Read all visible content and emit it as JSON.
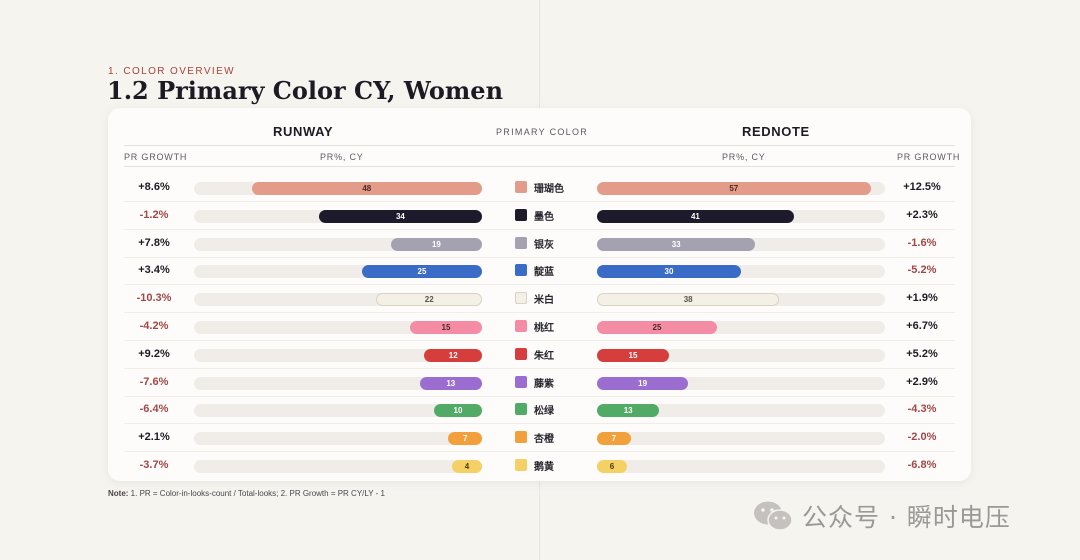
{
  "section_label": "1. COLOR OVERVIEW",
  "title": "1.2 Primary Color CY, Women",
  "headers": {
    "runway": "RUNWAY",
    "center": "PRIMARY COLOR",
    "rednote": "REDNOTE",
    "pr_growth_left": "PR GROWTH",
    "pr_cy_left": "PR%, CY",
    "pr_cy_right": "PR%, CY",
    "pr_growth_right": "PR GROWTH"
  },
  "note_label": "Note:",
  "note_text": " 1. PR = Color-in-looks-count / Total-looks; 2. PR Growth = PR CY/LY - 1",
  "watermark": "公众号 · 瞬时电压",
  "chart_data": {
    "type": "bar",
    "layout": "butterfly",
    "axis_max": 60,
    "categories": [
      "珊瑚色",
      "墨色",
      "银灰",
      "靛蓝",
      "米白",
      "桃红",
      "朱红",
      "藤紫",
      "松绿",
      "杏橙",
      "鹅黄"
    ],
    "colors": [
      "#e29c89",
      "#1d1a2c",
      "#a4a1b1",
      "#3a6bc7",
      "#f5f0e6",
      "#f38ca4",
      "#d63e3e",
      "#9b6dd0",
      "#52aa67",
      "#f2a03c",
      "#f4d065"
    ],
    "label_colors": [
      "#4a2a22",
      "#ffffff",
      "#ffffff",
      "#ffffff",
      "#5a544c",
      "#4a2a30",
      "#ffffff",
      "#ffffff",
      "#ffffff",
      "#ffffff",
      "#4a3c10"
    ],
    "series": [
      {
        "name": "RUNWAY",
        "values": [
          48,
          34,
          19,
          25,
          22,
          15,
          12,
          13,
          10,
          7,
          4
        ],
        "growth": [
          "+8.6%",
          "-1.2%",
          "+7.8%",
          "+3.4%",
          "-10.3%",
          "-4.2%",
          "+9.2%",
          "-7.6%",
          "-6.4%",
          "+2.1%",
          "-3.7%"
        ]
      },
      {
        "name": "REDNOTE",
        "values": [
          57,
          41,
          33,
          30,
          38,
          25,
          15,
          19,
          13,
          7,
          6
        ],
        "growth": [
          "+12.5%",
          "+2.3%",
          "-1.6%",
          "-5.2%",
          "+1.9%",
          "+6.7%",
          "+5.2%",
          "+2.9%",
          "-4.3%",
          "-2.0%",
          "-6.8%"
        ]
      }
    ]
  }
}
